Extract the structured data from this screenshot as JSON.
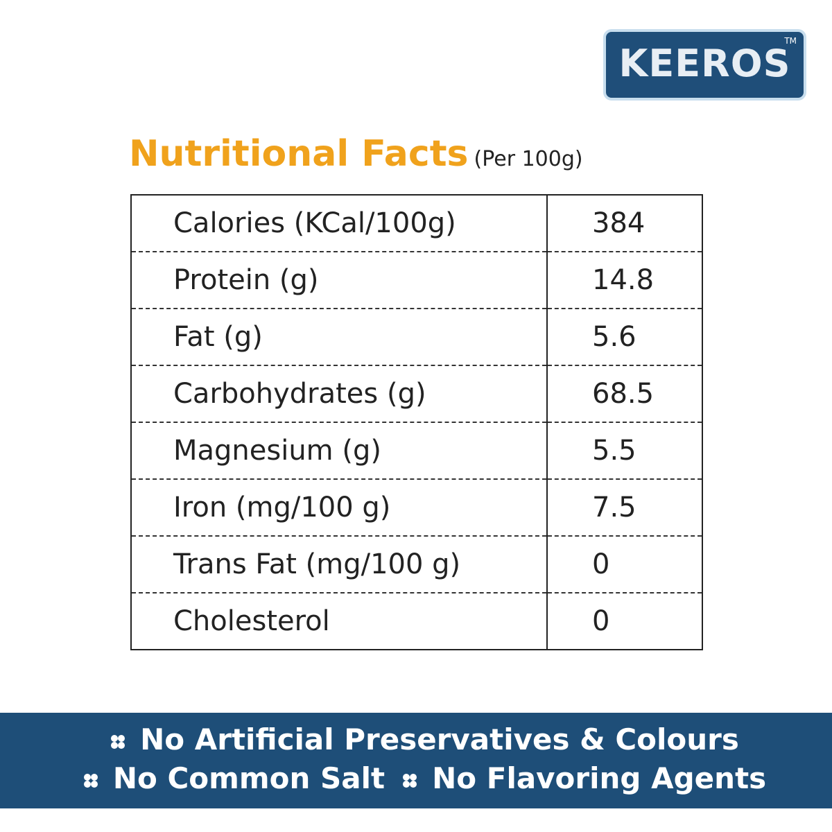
{
  "logo": {
    "text": "KEEROS",
    "trademark": "TM"
  },
  "header": {
    "title": "Nutritional Facts",
    "subtitle": "(Per 100g)"
  },
  "table": {
    "rows": [
      [
        "Calories (KCal/100g)",
        "384"
      ],
      [
        "Protein (g)",
        "14.8"
      ],
      [
        "Fat (g)",
        "5.6"
      ],
      [
        "Carbohydrates (g)",
        "68.5"
      ],
      [
        "Magnesium (g)",
        "5.5"
      ],
      [
        "Iron (mg/100 g)",
        "7.5"
      ],
      [
        "Trans Fat (mg/100 g)",
        "0"
      ],
      [
        "Cholesterol",
        "0"
      ]
    ]
  },
  "banner": {
    "features": [
      "No Artificial Preservatives & Colours",
      "No Common Salt",
      "No Flavoring Agents"
    ]
  }
}
